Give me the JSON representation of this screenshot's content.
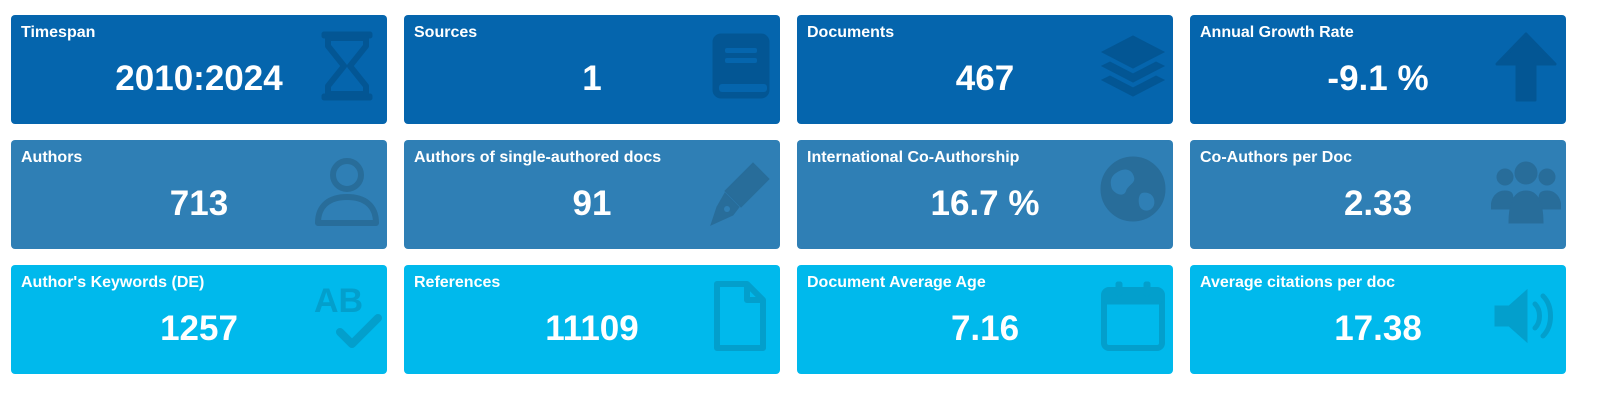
{
  "colors": {
    "row1": "#0565ad",
    "row2": "#2f7fb5",
    "row3": "#00b9ec",
    "text": "#ffffff"
  },
  "cards": [
    {
      "title": "Timespan",
      "value": "2010:2024",
      "icon": "hourglass-icon"
    },
    {
      "title": "Sources",
      "value": "1",
      "icon": "book-icon"
    },
    {
      "title": "Documents",
      "value": "467",
      "icon": "layers-icon"
    },
    {
      "title": "Annual Growth Rate",
      "value": "-9.1 %",
      "icon": "arrow-up-icon"
    },
    {
      "title": "Authors",
      "value": "713",
      "icon": "user-icon"
    },
    {
      "title": "Authors of single-authored docs",
      "value": "91",
      "icon": "pen-nib-icon"
    },
    {
      "title": "International Co-Authorship",
      "value": "16.7 %",
      "icon": "globe-icon"
    },
    {
      "title": "Co-Authors per Doc",
      "value": "2.33",
      "icon": "users-icon"
    },
    {
      "title": "Author's Keywords (DE)",
      "value": "1257",
      "icon": "spell-check-icon"
    },
    {
      "title": "References",
      "value": "11109",
      "icon": "file-icon"
    },
    {
      "title": "Document Average Age",
      "value": "7.16",
      "icon": "calendar-icon"
    },
    {
      "title": "Average citations per doc",
      "value": "17.38",
      "icon": "volume-icon"
    }
  ]
}
